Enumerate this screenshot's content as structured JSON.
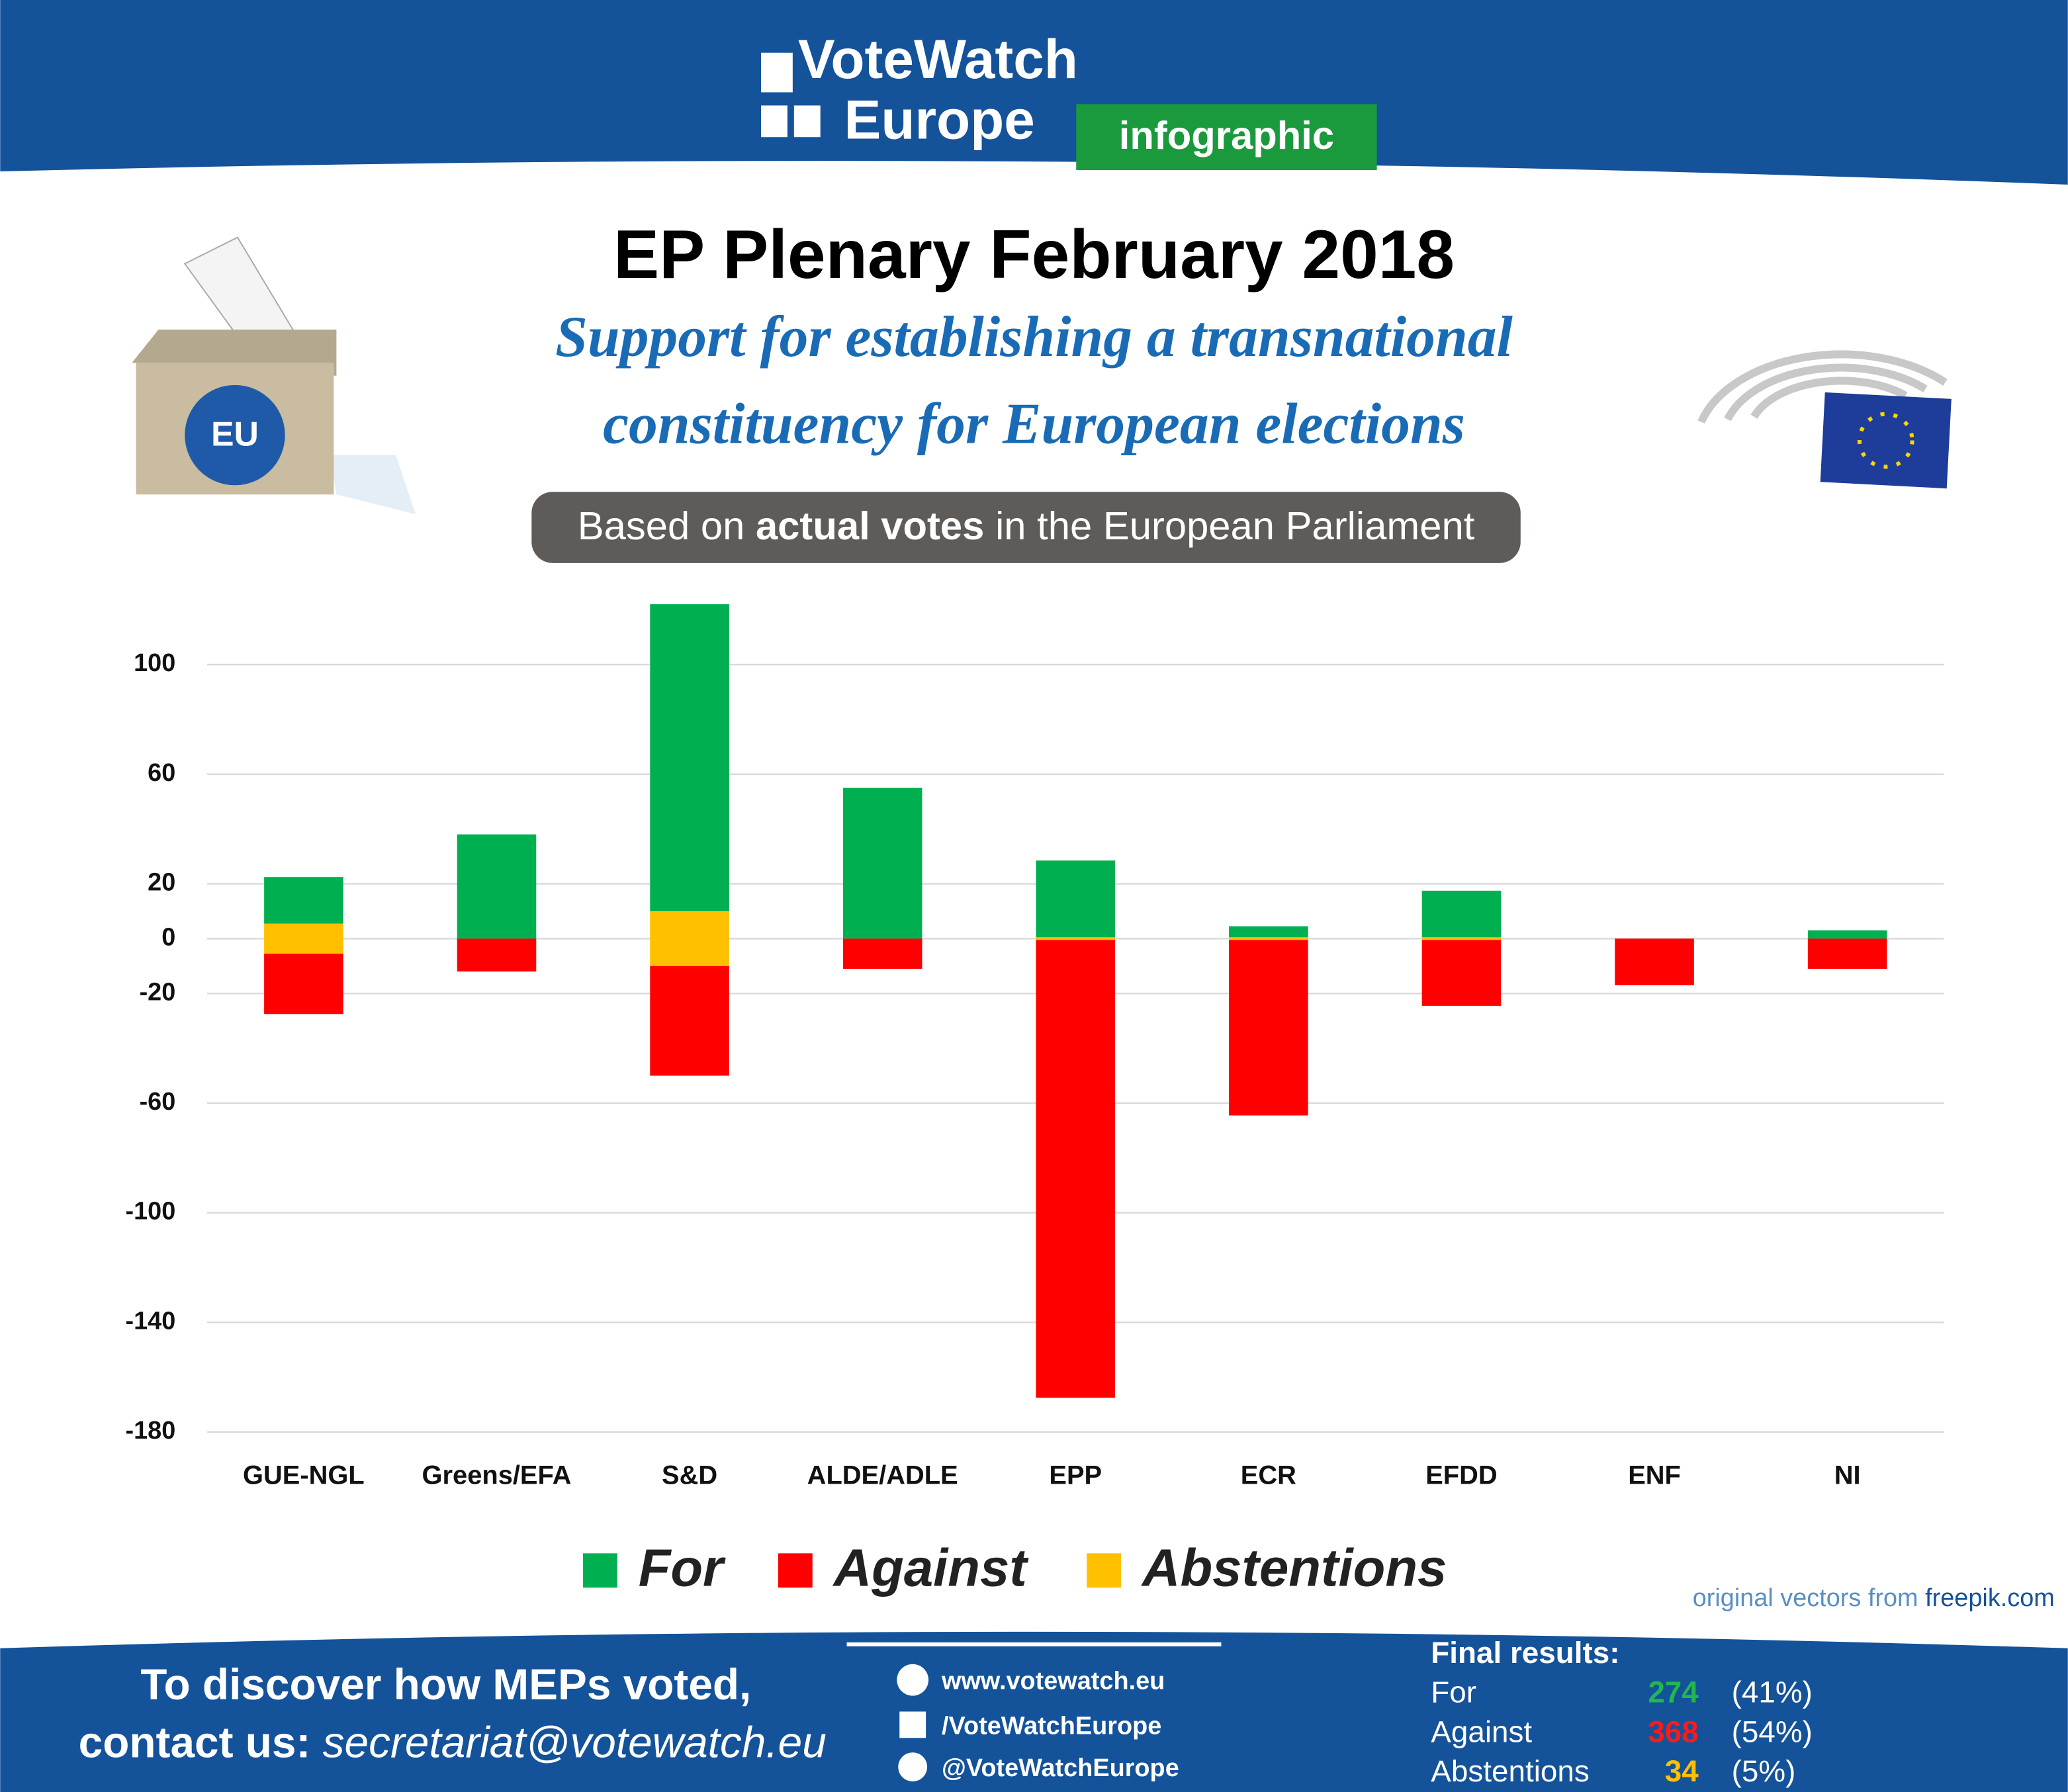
{
  "header": {
    "logo_line1": "VoteWatch",
    "logo_line2": "Europe",
    "badge": "infographic"
  },
  "chart_data": {
    "type": "bar",
    "title": "EP Plenary February 2018",
    "subtitle": [
      "Support for establishing a transnational",
      "constituency for European elections"
    ],
    "note": [
      "Based on",
      "actual votes",
      "in the European Parliament"
    ],
    "categories": [
      "GUE-NGL",
      "Greens/EFA",
      "S&D",
      "ALDE/ADLE",
      "EPP",
      "ECR",
      "EFDD",
      "ENF",
      "NI"
    ],
    "series": [
      {
        "name": "For",
        "color": "#00b050",
        "values": [
          17,
          38,
          112,
          55,
          28,
          4,
          17,
          0,
          3
        ]
      },
      {
        "name": "Against",
        "color": "#ff0000",
        "values": [
          -22,
          -12,
          -40,
          -11,
          -167,
          -64,
          -24,
          -17,
          -11
        ]
      },
      {
        "name": "Abstentions",
        "color": "#ffc000",
        "values": [
          11,
          0,
          20,
          0,
          1,
          1,
          1,
          0,
          0
        ]
      }
    ],
    "ylim": [
      -180,
      125
    ],
    "yticks": [
      100,
      60,
      20,
      0,
      -20,
      -60,
      -100,
      -140,
      -180
    ],
    "grid": true,
    "legend": "bottom"
  },
  "credit": [
    "original vectors from",
    "freepik.com"
  ],
  "footer": {
    "line1": "To discover how MEPs voted,",
    "line2": "contact us:",
    "email": "secretariat@votewatch.eu",
    "links": [
      "www.votewatch.eu",
      "/VoteWatchEurope",
      "@VoteWatchEurope"
    ]
  },
  "final_results": {
    "title": "Final results:",
    "rows": [
      {
        "label": "For",
        "value": 274,
        "pct": "(41%)"
      },
      {
        "label": "Against",
        "value": 368,
        "pct": "(54%)"
      },
      {
        "label": "Abstentions",
        "value": 34,
        "pct": "(5%)"
      }
    ]
  }
}
